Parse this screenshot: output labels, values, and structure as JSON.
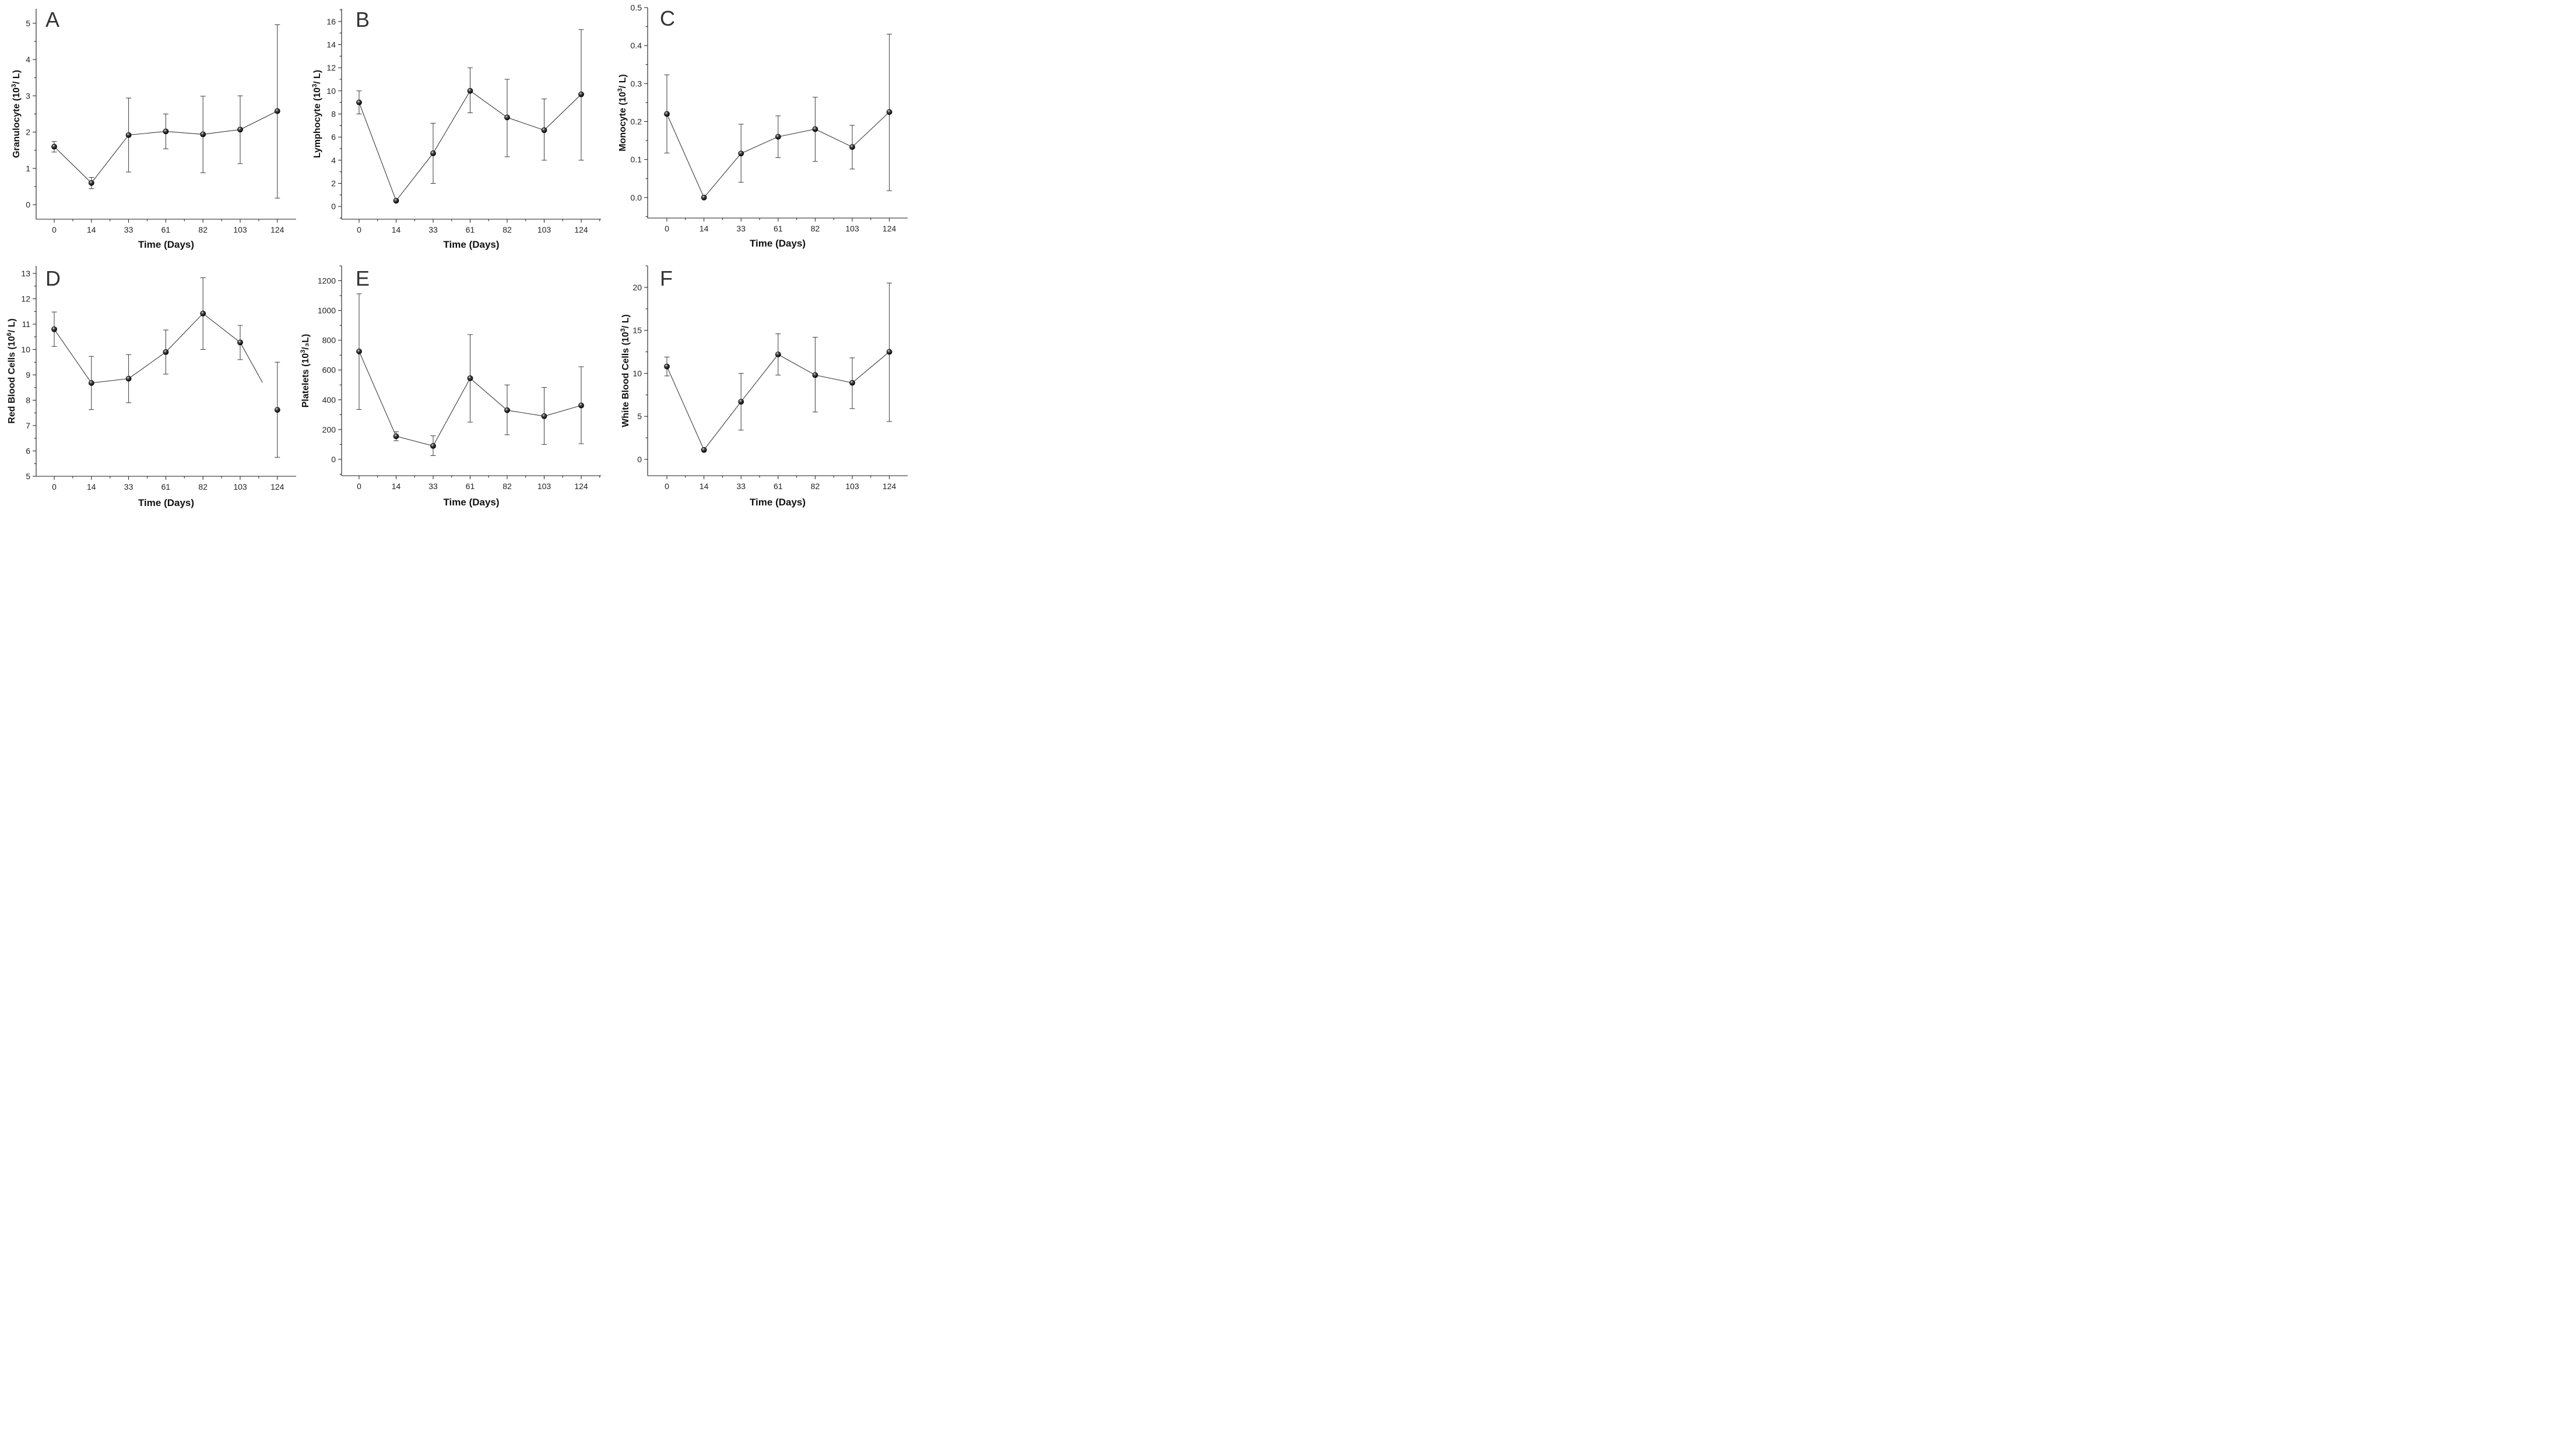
{
  "chart_data": [
    {
      "type": "line",
      "panel": "A",
      "ylabel": [
        "Granulocyte (10",
        "3",
        "/ L)"
      ],
      "xlabel": "Time (Days)",
      "categories": [
        "0",
        "14",
        "33",
        "61",
        "82",
        "103",
        "124"
      ],
      "values": [
        1.6,
        0.6,
        1.92,
        2.02,
        1.94,
        2.07,
        2.58
      ],
      "err_low": [
        1.45,
        0.44,
        0.9,
        1.54,
        0.88,
        1.13,
        0.18
      ],
      "err_high": [
        1.74,
        0.75,
        2.94,
        2.5,
        2.99,
        3.0,
        4.96
      ],
      "ylim": [
        -0.4,
        5.4
      ],
      "yticks": [
        0,
        1,
        2,
        3,
        4,
        5
      ],
      "ytick_labels": [
        "0",
        "1",
        "2",
        "3",
        "4",
        "5"
      ],
      "ytick_minor": 0.5,
      "connect_segments": 6
    },
    {
      "type": "line",
      "panel": "B",
      "ylabel": [
        "Lymphocyte (10",
        "3",
        "/ L)"
      ],
      "xlabel": "Time (Days)",
      "categories": [
        "0",
        "14",
        "33",
        "61",
        "82",
        "103",
        "124"
      ],
      "values": [
        9.0,
        0.5,
        4.6,
        10.0,
        7.7,
        6.6,
        9.7
      ],
      "err_low": [
        8.0,
        0.5,
        2.0,
        8.1,
        4.3,
        4.0,
        4.0
      ],
      "err_high": [
        10.0,
        0.5,
        7.2,
        12.0,
        11.0,
        9.3,
        15.3
      ],
      "ylim": [
        -1.1,
        17.1
      ],
      "yticks": [
        0,
        2,
        4,
        6,
        8,
        10,
        12,
        14,
        16
      ],
      "ytick_labels": [
        "0",
        "2",
        "4",
        "6",
        "8",
        "10",
        "12",
        "14",
        "16"
      ],
      "ytick_minor": 1,
      "connect_segments": 6
    },
    {
      "type": "line",
      "panel": "C",
      "ylabel": [
        "Monocyte (10",
        "3",
        "/ L)"
      ],
      "xlabel": "Time (Days)",
      "categories": [
        "0",
        "14",
        "33",
        "61",
        "82",
        "103",
        "124"
      ],
      "values": [
        0.22,
        0.0,
        0.116,
        0.16,
        0.18,
        0.133,
        0.225
      ],
      "err_low": [
        0.117,
        0.0,
        0.04,
        0.105,
        0.095,
        0.075,
        0.018
      ],
      "err_high": [
        0.323,
        0.0,
        0.193,
        0.215,
        0.264,
        0.19,
        0.43
      ],
      "ylim": [
        -0.054,
        0.5
      ],
      "yticks": [
        0,
        0.1,
        0.2,
        0.3,
        0.4,
        0.5
      ],
      "ytick_labels": [
        "0.0",
        "0.1",
        "0.2",
        "0.3",
        "0.4",
        "0.5"
      ],
      "ytick_minor": 0.05,
      "connect_segments": 6
    },
    {
      "type": "line",
      "panel": "D",
      "ylabel": [
        "Red Blood Cells (10",
        "6",
        "/ L)"
      ],
      "xlabel": "Time (Days)",
      "categories": [
        "0",
        "14",
        "33",
        "61",
        "82",
        "103",
        "124"
      ],
      "values": [
        10.8,
        8.68,
        8.85,
        9.9,
        11.42,
        10.28,
        7.62
      ],
      "err_low": [
        10.12,
        7.63,
        7.9,
        9.03,
        10.0,
        9.6,
        5.75
      ],
      "err_high": [
        11.48,
        9.73,
        9.8,
        10.77,
        12.83,
        10.95,
        9.5
      ],
      "ylim": [
        5.0,
        13.3
      ],
      "yticks": [
        5,
        6,
        7,
        8,
        9,
        10,
        11,
        12,
        13
      ],
      "ytick_labels": [
        "5",
        "6",
        "7",
        "8",
        "9",
        "10",
        "11",
        "12",
        "13"
      ],
      "ytick_minor": 0.5,
      "connect_segments": 5,
      "trailing_line_to": [
        5.6,
        8.7
      ]
    },
    {
      "type": "line",
      "panel": "E",
      "ylabel": [
        "Platelets (10",
        "3",
        "/₃L)"
      ],
      "xlabel": "Time (Days)",
      "categories": [
        "0",
        "14",
        "33",
        "61",
        "82",
        "103",
        "124"
      ],
      "values": [
        725,
        155,
        90,
        545,
        330,
        290,
        362
      ],
      "err_low": [
        335,
        125,
        25,
        250,
        165,
        100,
        105
      ],
      "err_high": [
        1112,
        185,
        158,
        838,
        500,
        483,
        622
      ],
      "ylim": [
        -110,
        1300
      ],
      "yticks": [
        0,
        200,
        400,
        600,
        800,
        1000,
        1200
      ],
      "ytick_labels": [
        "0",
        "200",
        "400",
        "600",
        "800",
        "1000",
        "1200"
      ],
      "ytick_minor": 100,
      "connect_segments": 6
    },
    {
      "type": "line",
      "panel": "F",
      "ylabel": [
        "White Blood Cells (10",
        "3",
        "/ L)"
      ],
      "xlabel": "Time (Days)",
      "categories": [
        "0",
        "14",
        "33",
        "61",
        "82",
        "103",
        "124"
      ],
      "values": [
        10.8,
        1.1,
        6.7,
        12.2,
        9.8,
        8.9,
        12.5
      ],
      "err_low": [
        9.7,
        1.1,
        3.4,
        9.8,
        5.5,
        5.9,
        4.4
      ],
      "err_high": [
        11.9,
        1.1,
        10.0,
        14.6,
        14.2,
        11.8,
        20.5
      ],
      "ylim": [
        -1.9,
        22.5
      ],
      "yticks": [
        0,
        5,
        10,
        15,
        20
      ],
      "ytick_labels": [
        "0",
        "5",
        "10",
        "15",
        "20"
      ],
      "ytick_minor": 2.5,
      "connect_segments": 6
    }
  ]
}
